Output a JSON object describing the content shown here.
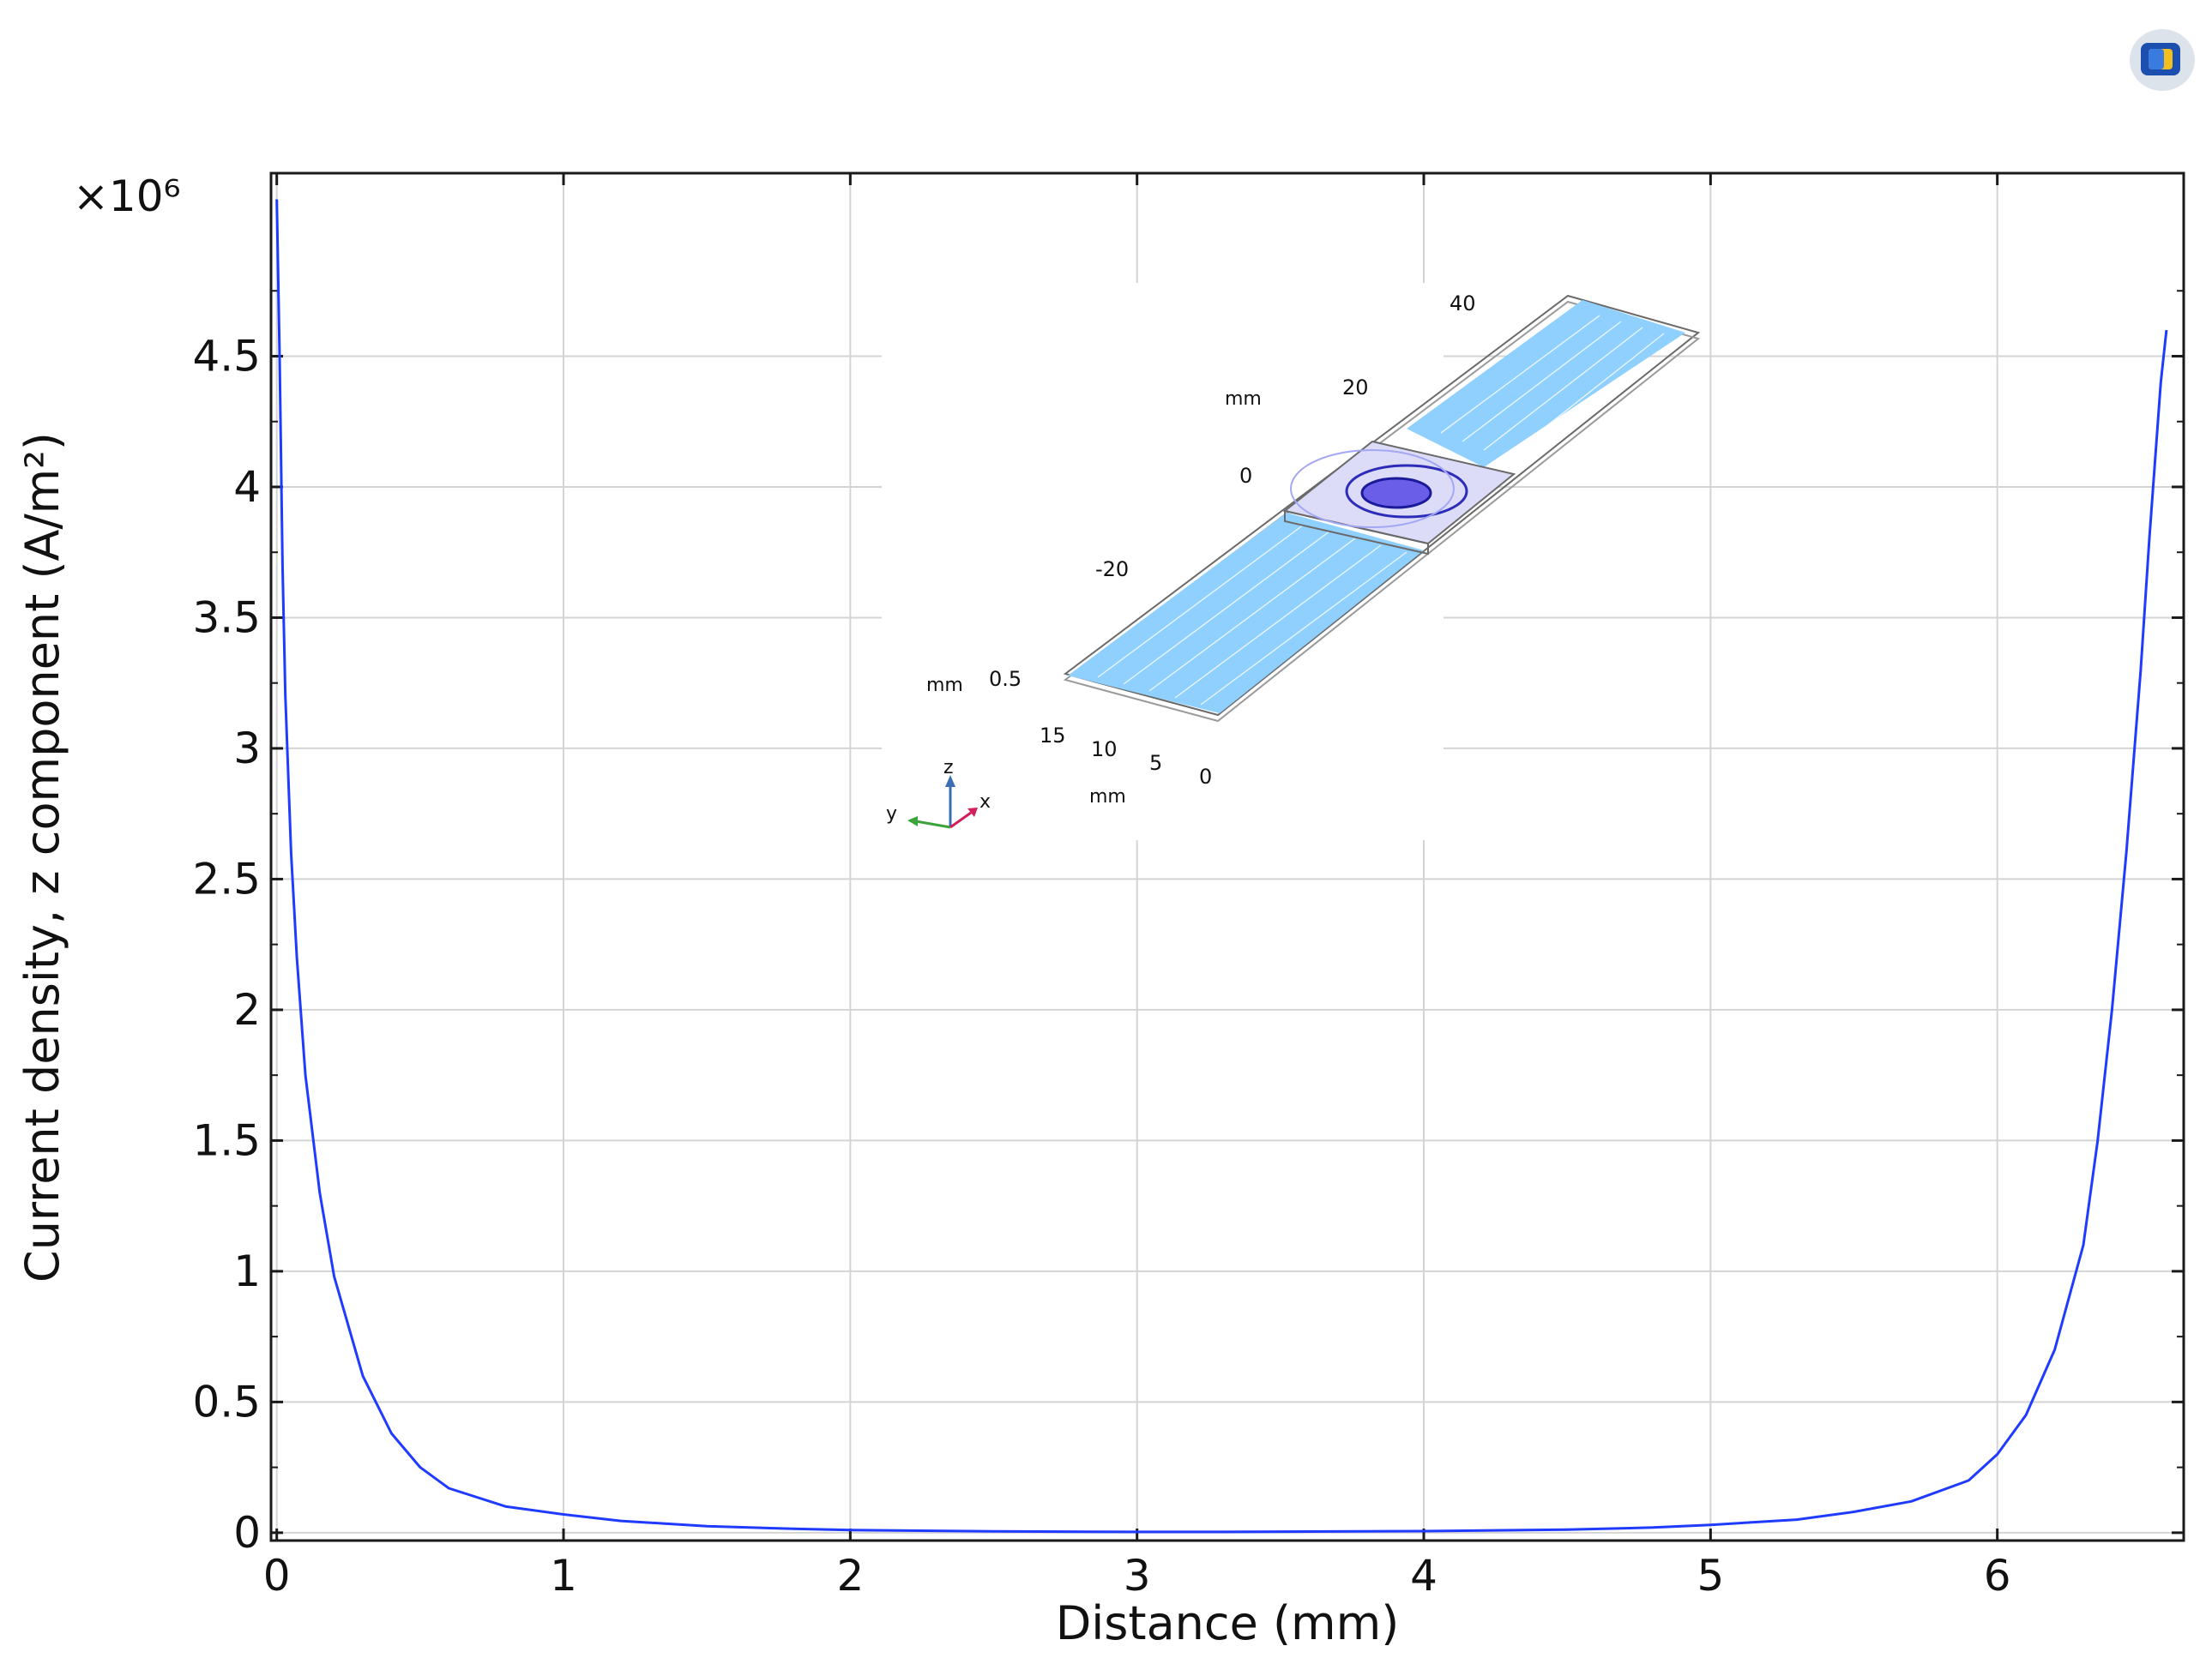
{
  "chart_data": {
    "type": "line",
    "title": "",
    "xlabel": "Distance (mm)",
    "ylabel": "Current density, z component (A/m²)",
    "y_multiplier": "×10⁶",
    "xlim": [
      -0.02,
      6.65
    ],
    "ylim": [
      -0.03,
      5.2
    ],
    "x_ticks": [
      0,
      1,
      2,
      3,
      4,
      5,
      6
    ],
    "y_ticks": [
      0,
      0.5,
      1,
      1.5,
      2,
      2.5,
      3,
      3.5,
      4,
      4.5
    ],
    "grid": true,
    "line_color": "#1f3bff",
    "series": [
      {
        "name": "",
        "x": [
          0,
          0.01,
          0.02,
          0.03,
          0.05,
          0.07,
          0.1,
          0.15,
          0.2,
          0.3,
          0.4,
          0.5,
          0.6,
          0.8,
          1.0,
          1.2,
          1.5,
          1.8,
          2.0,
          2.5,
          3.0,
          3.3,
          3.5,
          4.0,
          4.5,
          4.8,
          5.0,
          5.3,
          5.5,
          5.7,
          5.9,
          6.0,
          6.1,
          6.2,
          6.3,
          6.35,
          6.4,
          6.45,
          6.5,
          6.53,
          6.55,
          6.57,
          6.58,
          6.59
        ],
        "y": [
          5.1,
          4.5,
          3.7,
          3.2,
          2.6,
          2.2,
          1.75,
          1.3,
          0.98,
          0.6,
          0.38,
          0.25,
          0.17,
          0.1,
          0.07,
          0.045,
          0.025,
          0.015,
          0.01,
          0.005,
          0.003,
          0.003,
          0.004,
          0.006,
          0.012,
          0.02,
          0.03,
          0.05,
          0.08,
          0.12,
          0.2,
          0.3,
          0.45,
          0.7,
          1.1,
          1.5,
          2.0,
          2.6,
          3.3,
          3.8,
          4.1,
          4.4,
          4.5,
          4.6
        ]
      }
    ]
  },
  "inset": {
    "axis_labels": {
      "x_numbers": [
        "40",
        "20",
        "0",
        "-20"
      ],
      "z_number": "0.5",
      "y_numbers": [
        "15",
        "10",
        "5",
        "0"
      ],
      "units": [
        "mm",
        "mm",
        "mm"
      ]
    },
    "triad": {
      "z": "z",
      "y": "y",
      "x": "x"
    }
  },
  "logo": {
    "icon": "comsol-logo-icon"
  }
}
